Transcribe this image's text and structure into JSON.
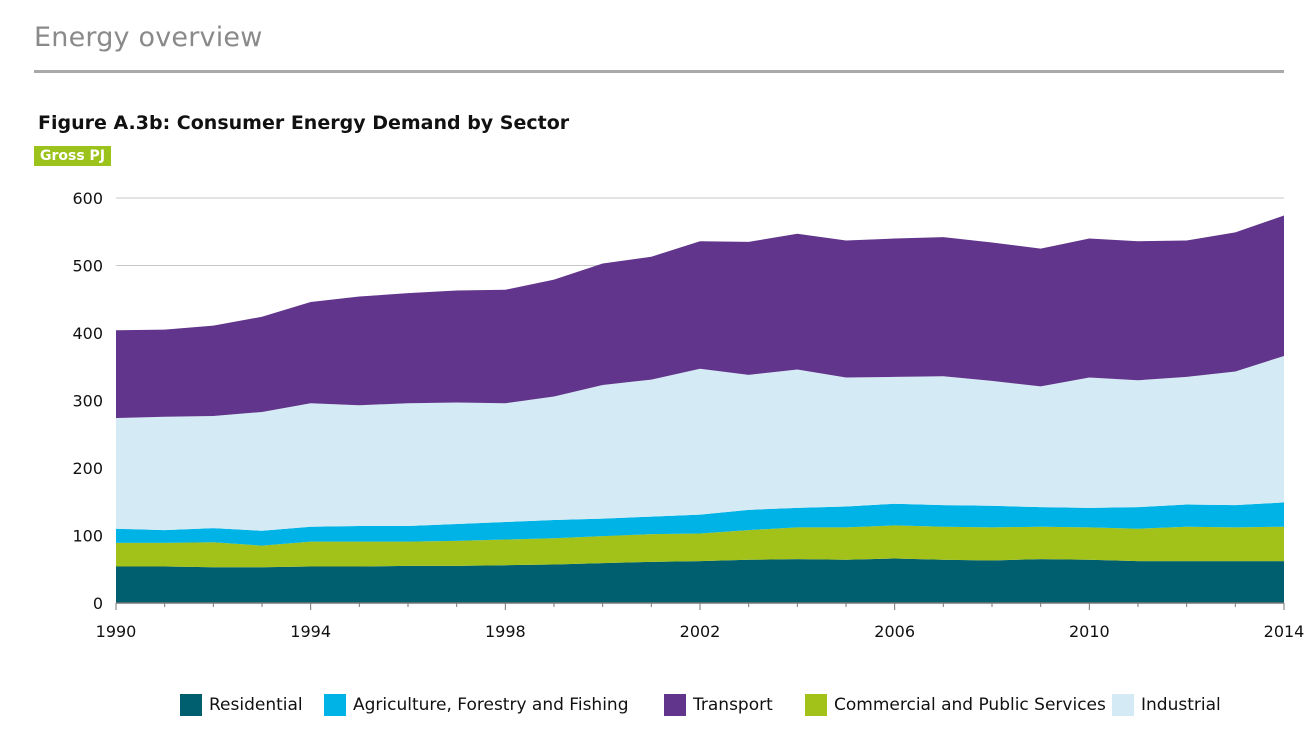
{
  "header": {
    "title": "Energy overview"
  },
  "chart_data": {
    "type": "area",
    "stacked": true,
    "title": "Figure A.3b: Consumer Energy Demand by Sector",
    "ylabel": "Gross PJ",
    "xlabel": "",
    "x": [
      1990,
      1991,
      1992,
      1993,
      1994,
      1995,
      1996,
      1997,
      1998,
      1999,
      2000,
      2001,
      2002,
      2003,
      2004,
      2005,
      2006,
      2007,
      2008,
      2009,
      2010,
      2011,
      2012,
      2013,
      2014
    ],
    "x_ticks": [
      1990,
      1994,
      1998,
      2002,
      2006,
      2010,
      2014
    ],
    "xlim": [
      1990,
      2014
    ],
    "ylim": [
      0,
      600
    ],
    "y_ticks": [
      0,
      100,
      200,
      300,
      400,
      500,
      600
    ],
    "grid": "horizontal",
    "legend_position": "bottom",
    "series": [
      {
        "name": "Residential",
        "color": "#005f6e",
        "values": [
          54,
          54,
          53,
          53,
          54,
          54,
          55,
          55,
          56,
          57,
          59,
          61,
          62,
          64,
          65,
          64,
          66,
          64,
          63,
          65,
          64,
          62,
          62,
          62,
          62
        ]
      },
      {
        "name": "Commercial and Public Services",
        "color": "#a2c21a",
        "values": [
          35,
          35,
          37,
          32,
          37,
          37,
          36,
          37,
          38,
          39,
          40,
          41,
          41,
          44,
          47,
          48,
          49,
          49,
          49,
          48,
          48,
          48,
          51,
          50,
          51
        ]
      },
      {
        "name": "Agriculture, Forestry and Fishing",
        "color": "#00b3e6",
        "values": [
          21,
          19,
          21,
          22,
          22,
          23,
          23,
          25,
          26,
          27,
          26,
          26,
          28,
          30,
          29,
          31,
          32,
          32,
          32,
          29,
          29,
          32,
          33,
          33,
          36
        ]
      },
      {
        "name": "Industrial",
        "color": "#d4eaf4",
        "values": [
          164,
          168,
          166,
          176,
          183,
          179,
          182,
          180,
          176,
          183,
          198,
          203,
          216,
          200,
          205,
          191,
          188,
          191,
          185,
          179,
          193,
          188,
          189,
          198,
          217
        ]
      },
      {
        "name": "Transport",
        "color": "#61358b",
        "values": [
          130,
          129,
          134,
          141,
          150,
          161,
          163,
          166,
          168,
          173,
          180,
          182,
          189,
          197,
          201,
          203,
          205,
          206,
          205,
          204,
          206,
          206,
          202,
          206,
          208
        ]
      }
    ],
    "legend_order": [
      "Residential",
      "Agriculture, Forestry and Fishing",
      "Transport",
      "Commercial and Public Services",
      "Industrial"
    ]
  }
}
